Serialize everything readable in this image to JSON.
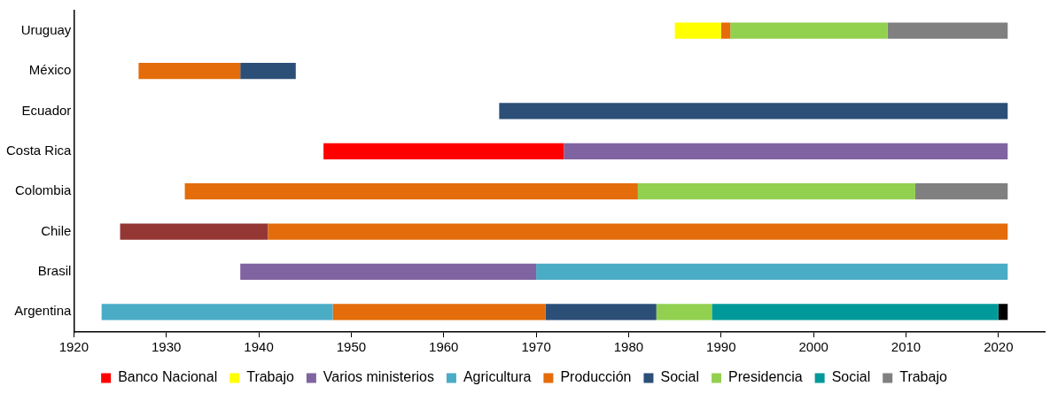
{
  "chart_data": {
    "type": "bar",
    "orientation": "horizontal",
    "categories": [
      "Uruguay",
      "México",
      "Ecuador",
      "Costa Rica",
      "Colombia",
      "Chile",
      "Brasil",
      "Argentina"
    ],
    "xlim": [
      1920,
      2025
    ],
    "xticks": [
      1920,
      1930,
      1940,
      1950,
      1960,
      1970,
      1980,
      1990,
      2000,
      2010,
      2020
    ],
    "grid": false,
    "legend": "bottom",
    "series": [
      {
        "name": "Banco Nacional",
        "color": "#ff0000",
        "base": [
          null,
          null,
          null,
          1947,
          null,
          null,
          null,
          null
        ],
        "values": [
          null,
          null,
          null,
          26,
          null,
          null,
          null,
          null
        ]
      },
      {
        "name": "Trabajo",
        "color": "#ffff00",
        "base": [
          1985,
          null,
          null,
          null,
          null,
          null,
          null,
          null
        ],
        "values": [
          5,
          null,
          null,
          null,
          null,
          null,
          null,
          null
        ]
      },
      {
        "name": "Varios ministerios",
        "color": "#8064a2",
        "base": [
          null,
          null,
          null,
          1973,
          null,
          null,
          1938,
          null
        ],
        "values": [
          null,
          null,
          null,
          48,
          null,
          null,
          32,
          null
        ]
      },
      {
        "name": "Agricultura",
        "color": "#4bacc6",
        "base": [
          null,
          null,
          null,
          null,
          null,
          null,
          1970,
          1923
        ],
        "values": [
          null,
          null,
          null,
          null,
          null,
          null,
          51,
          25
        ]
      },
      {
        "name": "Producción",
        "color": "#e46c0a",
        "base": [
          1990,
          1927,
          null,
          null,
          1932,
          1941,
          null,
          1948
        ],
        "values": [
          1,
          11,
          null,
          null,
          49,
          80,
          null,
          23
        ]
      },
      {
        "name": "Social",
        "color": "#2c4f78",
        "base": [
          null,
          1938,
          1966,
          null,
          null,
          null,
          null,
          1971
        ],
        "values": [
          null,
          6,
          55,
          null,
          null,
          null,
          null,
          12
        ]
      },
      {
        "name": "Presidencia",
        "color": "#92d050",
        "base": [
          1991,
          null,
          null,
          null,
          1981,
          null,
          null,
          1983
        ],
        "values": [
          17,
          null,
          null,
          null,
          30,
          null,
          null,
          6
        ]
      },
      {
        "name": "Social",
        "color": "#009999",
        "base": [
          null,
          null,
          null,
          null,
          null,
          null,
          null,
          1989
        ],
        "values": [
          null,
          null,
          null,
          null,
          null,
          null,
          null,
          31
        ]
      },
      {
        "name": "Trabajo",
        "color": "#808080",
        "base": [
          2008,
          null,
          null,
          null,
          2011,
          null,
          null,
          null
        ],
        "values": [
          13,
          null,
          null,
          null,
          10,
          null,
          null,
          null
        ]
      },
      {
        "color": "#943634",
        "base": [
          null,
          null,
          null,
          null,
          null,
          1925,
          null,
          null
        ],
        "values": [
          null,
          null,
          null,
          null,
          null,
          16,
          null,
          null
        ]
      },
      {
        "color": "#000000",
        "base": [
          null,
          null,
          null,
          null,
          null,
          null,
          null,
          2020
        ],
        "values": [
          null,
          null,
          null,
          null,
          null,
          null,
          null,
          1
        ]
      }
    ]
  }
}
